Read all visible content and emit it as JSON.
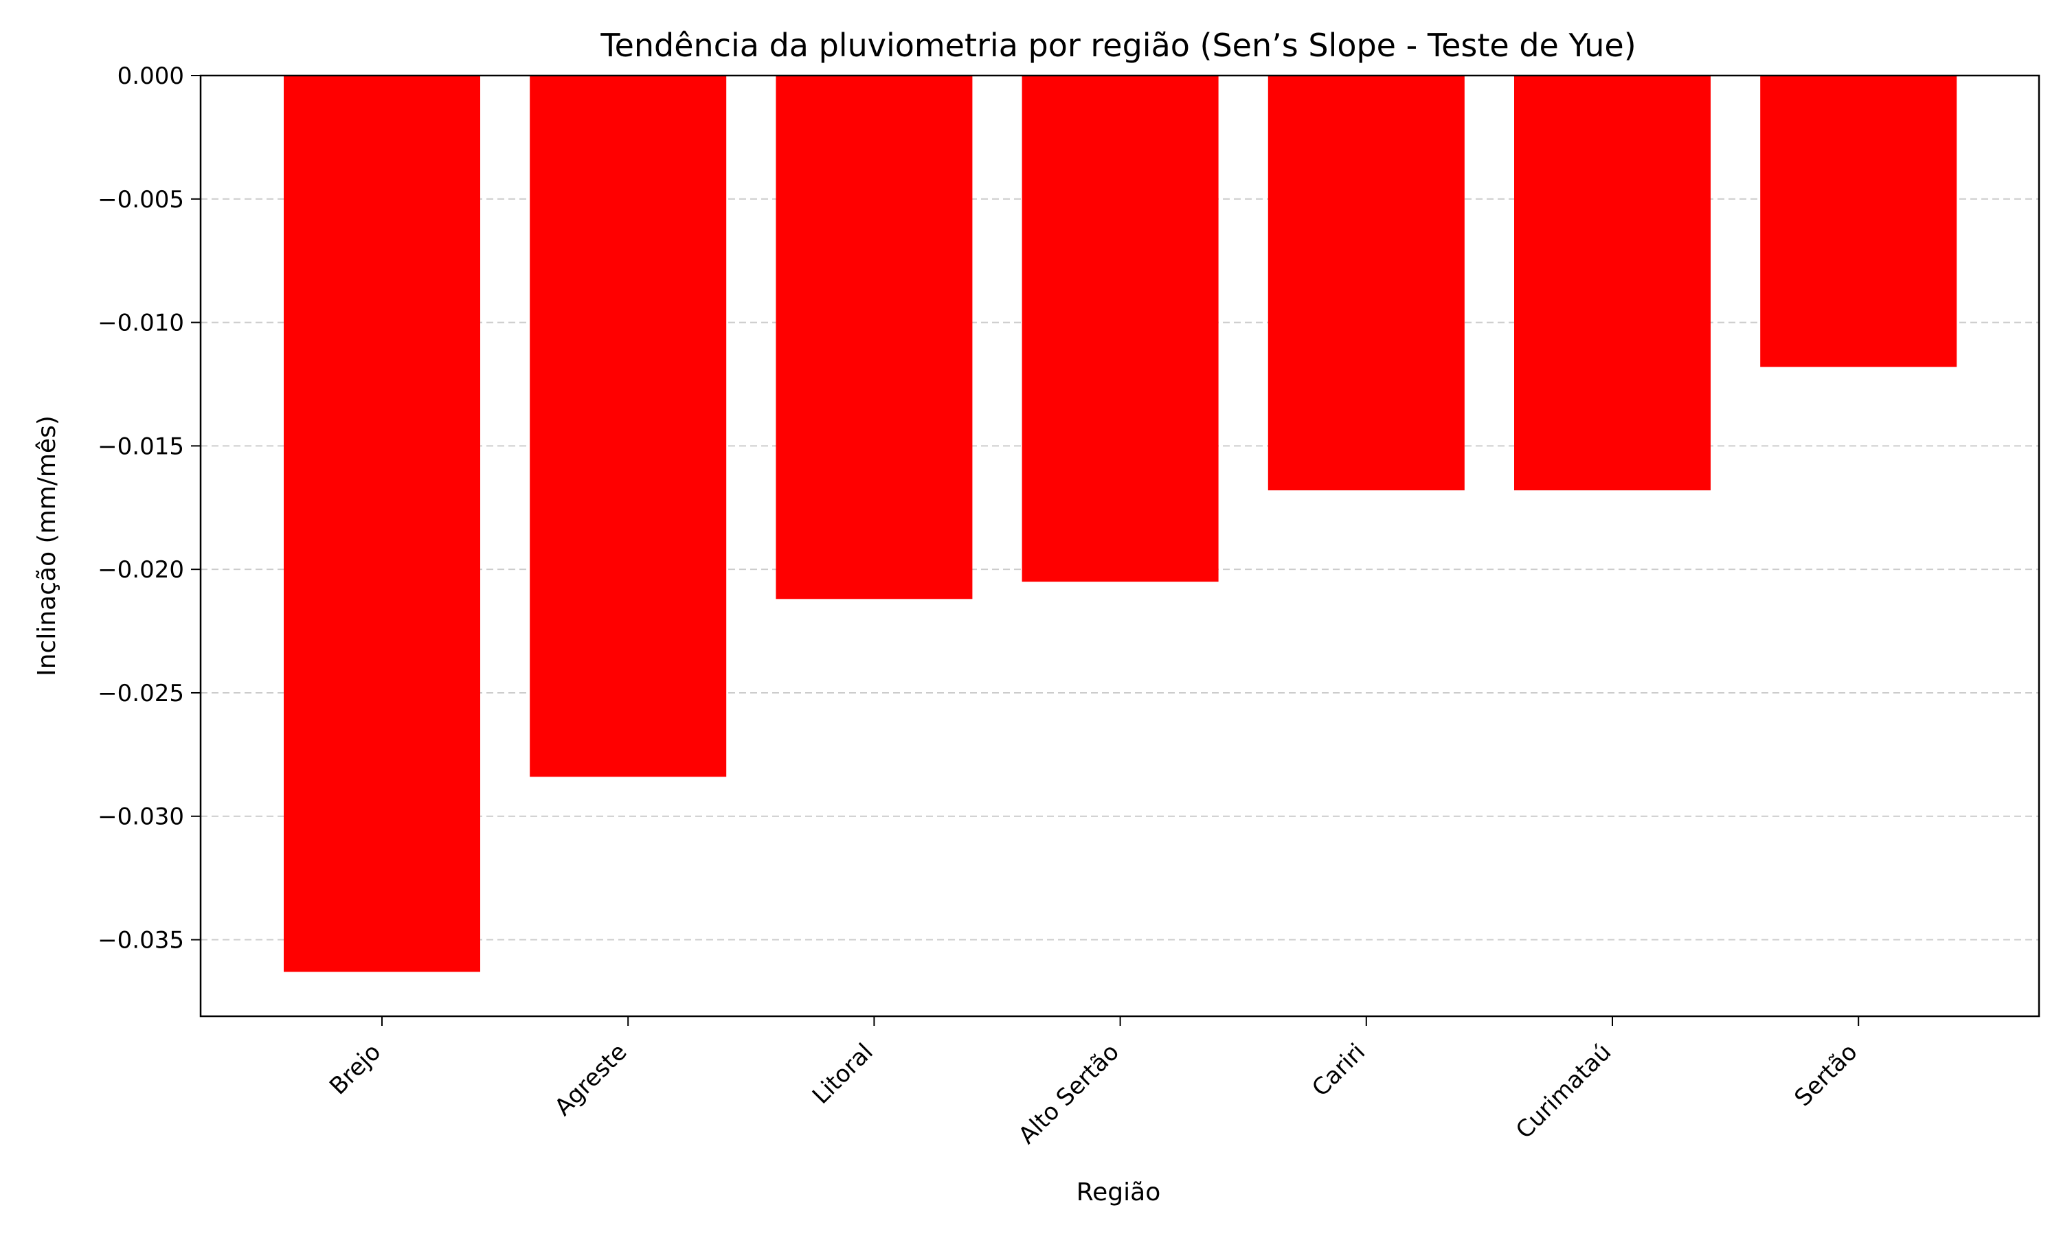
{
  "chart_data": {
    "type": "bar",
    "title": "Tendência da pluviometria por região (Sen’s Slope - Teste de Yue)",
    "xlabel": "Região",
    "ylabel": "Inclinação (mm/mês)",
    "categories": [
      "Brejo",
      "Agreste",
      "Litoral",
      "Alto Sertão",
      "Cariri",
      "Curimataú",
      "Sertão"
    ],
    "values": [
      -0.0363,
      -0.0284,
      -0.0212,
      -0.0205,
      -0.0168,
      -0.0168,
      -0.0118
    ],
    "ylim": [
      -0.0381,
      0.0
    ],
    "yticks": [
      0.0,
      -0.005,
      -0.01,
      -0.015,
      -0.02,
      -0.025,
      -0.03,
      -0.035
    ],
    "ytick_labels": [
      "0.000",
      "−0.005",
      "−0.010",
      "−0.015",
      "−0.020",
      "−0.025",
      "−0.030",
      "−0.035"
    ],
    "bar_color": "#ff0000",
    "grid": "y-dashed",
    "legend": "none"
  }
}
